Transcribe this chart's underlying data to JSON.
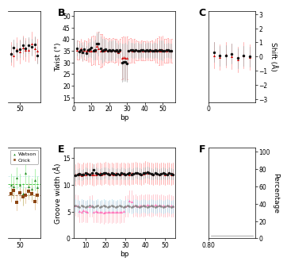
{
  "bg_color": "#ffffff",
  "panel_bg": "#ffffff",
  "label_fontsize": 6.5,
  "tick_fontsize": 5.5,
  "bold_fontsize": 9,
  "panel_B": {
    "label": "B",
    "ylabel": "Twist (°)",
    "xlabel": "bp",
    "xlim": [
      0,
      57
    ],
    "ylim": [
      13,
      52
    ],
    "yticks": [
      15,
      20,
      25,
      30,
      35,
      40,
      45,
      50
    ],
    "xticks": [
      0,
      10,
      20,
      30,
      40,
      50
    ],
    "mc_color": "#111111",
    "md_color": "#cc0000",
    "md_light": "#ff9999",
    "mc_light": "#aaaaaa",
    "x": [
      2,
      3,
      4,
      5,
      6,
      7,
      8,
      9,
      10,
      11,
      12,
      13,
      14,
      15,
      16,
      17,
      18,
      19,
      20,
      21,
      22,
      23,
      24,
      25,
      26,
      27,
      28,
      29,
      30,
      31,
      32,
      33,
      34,
      35,
      36,
      37,
      38,
      39,
      40,
      41,
      42,
      43,
      44,
      45,
      46,
      47,
      48,
      49,
      50,
      51,
      52,
      53,
      54,
      55
    ],
    "mc_y": [
      36.1,
      34.8,
      35.5,
      34.2,
      35.8,
      34.1,
      35.3,
      35.7,
      36.2,
      35.1,
      35.4,
      38.2,
      37.9,
      36.1,
      35.0,
      35.3,
      35.6,
      34.9,
      35.2,
      35.0,
      35.4,
      35.1,
      35.3,
      34.8,
      35.2,
      29.8,
      30.1,
      30.3,
      29.7,
      35.1,
      35.4,
      35.2,
      35.0,
      35.3,
      35.1,
      34.9,
      35.2,
      35.4,
      35.0,
      35.3,
      35.1,
      35.2,
      34.9,
      35.1,
      35.3,
      35.0,
      35.2,
      35.4,
      35.1,
      35.0,
      35.2,
      35.3,
      35.1,
      34.9
    ],
    "mc_err": [
      3.2,
      3.1,
      3.0,
      3.2,
      3.1,
      3.0,
      3.2,
      3.1,
      4.1,
      4.0,
      4.2,
      4.3,
      5.1,
      5.0,
      5.2,
      4.9,
      4.1,
      4.0,
      4.2,
      4.1,
      4.0,
      4.2,
      3.1,
      3.0,
      3.2,
      8.1,
      8.0,
      8.2,
      8.1,
      4.1,
      3.0,
      3.2,
      3.1,
      3.0,
      3.2,
      3.1,
      3.0,
      3.2,
      3.1,
      3.0,
      3.2,
      3.1,
      3.0,
      3.2,
      3.1,
      3.0,
      4.1,
      4.0,
      4.2,
      3.1,
      3.0,
      3.2,
      3.1,
      3.0
    ],
    "md_y": [
      35.2,
      35.1,
      36.0,
      34.8,
      35.3,
      35.0,
      35.4,
      35.1,
      35.0,
      35.3,
      35.1,
      37.2,
      36.1,
      35.0,
      35.2,
      35.1,
      35.3,
      35.0,
      35.2,
      35.1,
      35.3,
      35.0,
      35.1,
      34.2,
      35.0,
      31.8,
      32.1,
      32.0,
      31.9,
      35.0,
      35.2,
      35.1,
      35.0,
      35.2,
      35.1,
      35.0,
      35.2,
      35.1,
      35.0,
      35.2,
      35.1,
      35.0,
      35.2,
      35.1,
      35.0,
      35.2,
      35.1,
      35.0,
      35.2,
      35.1,
      35.0,
      35.2,
      35.1,
      35.0
    ],
    "md_err": [
      4.1,
      4.0,
      4.2,
      4.1,
      4.0,
      4.2,
      5.1,
      5.0,
      6.1,
      6.0,
      6.2,
      6.1,
      7.0,
      7.2,
      7.1,
      6.1,
      5.0,
      5.2,
      5.1,
      5.0,
      5.2,
      5.1,
      5.0,
      5.2,
      5.1,
      9.1,
      9.0,
      9.2,
      9.1,
      5.0,
      5.2,
      5.1,
      5.0,
      4.2,
      4.1,
      4.0,
      4.2,
      4.1,
      4.0,
      4.2,
      4.1,
      4.0,
      4.2,
      4.1,
      5.0,
      5.2,
      6.1,
      6.0,
      6.2,
      5.1,
      5.0,
      5.2,
      5.1,
      5.0
    ]
  },
  "panel_E": {
    "label": "E",
    "ylabel": "Groove width (Å)",
    "xlabel": "bp",
    "xlim": [
      4,
      55
    ],
    "ylim": [
      0,
      17
    ],
    "yticks": [
      0,
      5,
      10,
      15
    ],
    "xticks": [
      10,
      20,
      30,
      40,
      50
    ],
    "mc_major_color": "#111111",
    "md_major_color": "#cc0000",
    "md_major_light": "#ff9999",
    "mc_major_light": "#aaaaaa",
    "md_minor_color": "#ff69b4",
    "md_minor_light": "#ffb6c1",
    "mc_minor_light": "#aaddee",
    "mc_minor_color": "#888888",
    "x": [
      5,
      6,
      7,
      8,
      9,
      10,
      11,
      12,
      13,
      14,
      15,
      16,
      17,
      18,
      19,
      20,
      21,
      22,
      23,
      24,
      25,
      26,
      27,
      28,
      29,
      30,
      31,
      32,
      33,
      34,
      35,
      36,
      37,
      38,
      39,
      40,
      41,
      42,
      43,
      44,
      45,
      46,
      47,
      48,
      49,
      50,
      51,
      52,
      53,
      54
    ],
    "mc_major_y": [
      11.8,
      12.0,
      12.1,
      11.9,
      12.0,
      12.2,
      12.1,
      12.0,
      12.3,
      12.8,
      12.2,
      12.1,
      12.0,
      12.1,
      12.2,
      12.3,
      12.1,
      12.0,
      12.2,
      12.1,
      12.0,
      12.1,
      12.0,
      12.2,
      12.1,
      12.0,
      12.1,
      12.2,
      12.0,
      12.1,
      12.3,
      12.2,
      12.1,
      12.0,
      12.2,
      12.3,
      12.4,
      12.2,
      12.1,
      12.0,
      12.2,
      12.1,
      12.0,
      12.1,
      12.2,
      12.1,
      12.0,
      12.2,
      12.1,
      12.0
    ],
    "mc_major_err": [
      1.0,
      1.0,
      1.0,
      1.0,
      1.0,
      1.0,
      1.0,
      1.0,
      1.0,
      1.0,
      1.0,
      1.0,
      1.0,
      1.0,
      1.0,
      1.0,
      1.0,
      1.0,
      1.0,
      1.0,
      1.0,
      1.0,
      1.0,
      1.0,
      1.0,
      1.0,
      1.0,
      1.0,
      1.0,
      1.0,
      1.0,
      1.0,
      1.0,
      1.0,
      1.0,
      1.0,
      1.0,
      1.0,
      1.0,
      1.0,
      1.0,
      1.0,
      1.0,
      1.0,
      1.0,
      1.0,
      1.0,
      1.0,
      1.0,
      1.0
    ],
    "md_major_y": [
      11.9,
      12.1,
      12.0,
      11.8,
      12.1,
      12.0,
      12.2,
      12.1,
      12.0,
      11.9,
      12.0,
      12.1,
      12.2,
      12.0,
      12.1,
      12.3,
      12.2,
      12.0,
      12.1,
      12.0,
      12.2,
      12.1,
      12.0,
      12.1,
      12.2,
      12.0,
      12.1,
      12.0,
      12.2,
      12.1,
      12.3,
      12.2,
      12.1,
      12.0,
      12.1,
      12.4,
      12.3,
      12.2,
      12.1,
      12.0,
      12.2,
      12.1,
      12.0,
      12.1,
      12.2,
      12.0,
      12.1,
      12.2,
      12.0,
      12.1
    ],
    "md_major_err": [
      2.0,
      2.0,
      2.0,
      2.0,
      2.0,
      2.0,
      2.0,
      2.0,
      2.0,
      2.0,
      2.0,
      2.0,
      2.0,
      2.0,
      2.0,
      2.0,
      2.0,
      2.0,
      2.0,
      2.0,
      2.0,
      2.0,
      2.0,
      2.0,
      2.0,
      2.0,
      2.0,
      2.0,
      2.0,
      2.0,
      2.0,
      2.0,
      2.0,
      2.0,
      2.0,
      2.0,
      2.0,
      2.0,
      2.0,
      2.0,
      2.0,
      2.0,
      2.0,
      2.0,
      2.0,
      2.0,
      2.0,
      2.0,
      2.0,
      2.0
    ],
    "mc_minor_y": [
      6.1,
      6.0,
      5.9,
      6.1,
      6.0,
      5.8,
      6.0,
      6.1,
      6.0,
      5.9,
      6.0,
      6.1,
      5.9,
      6.0,
      6.1,
      6.0,
      5.9,
      6.0,
      6.1,
      6.0,
      5.9,
      6.0,
      6.1,
      6.0,
      5.9,
      6.0,
      6.1,
      6.0,
      5.9,
      6.0,
      6.1,
      6.0,
      5.9,
      6.0,
      6.1,
      6.0,
      5.9,
      6.0,
      6.1,
      6.0,
      5.9,
      6.0,
      6.1,
      6.0,
      5.9,
      6.0,
      6.1,
      6.0,
      5.9,
      6.0
    ],
    "mc_minor_err": [
      1.2,
      1.2,
      1.2,
      1.2,
      1.2,
      1.2,
      1.2,
      1.2,
      1.2,
      1.2,
      1.2,
      1.2,
      1.2,
      1.2,
      1.2,
      1.2,
      1.2,
      1.2,
      1.2,
      1.2,
      1.2,
      1.2,
      1.2,
      1.2,
      1.2,
      1.2,
      1.2,
      1.2,
      1.2,
      1.2,
      1.2,
      1.2,
      1.2,
      1.2,
      1.2,
      1.2,
      1.2,
      1.2,
      1.2,
      1.2,
      1.2,
      1.2,
      1.2,
      1.2,
      1.2,
      1.2,
      1.2,
      1.2,
      1.2,
      1.2
    ],
    "md_minor_y": [
      6.2,
      6.1,
      5.1,
      5.0,
      5.2,
      5.1,
      5.0,
      6.0,
      6.1,
      5.0,
      5.1,
      5.0,
      4.9,
      5.0,
      4.8,
      5.0,
      4.9,
      5.0,
      4.9,
      5.0,
      4.9,
      5.0,
      4.9,
      5.0,
      5.1,
      6.0,
      6.1,
      7.0,
      6.9,
      6.1,
      6.2,
      6.0,
      6.1,
      6.2,
      6.1,
      6.2,
      6.3,
      6.2,
      6.1,
      6.2,
      6.3,
      6.2,
      6.1,
      6.2,
      6.1,
      6.0,
      6.1,
      6.2,
      6.1,
      6.0
    ],
    "md_minor_err": [
      2.0,
      2.0,
      2.0,
      2.0,
      2.0,
      2.0,
      2.0,
      2.0,
      2.0,
      2.0,
      2.0,
      2.0,
      2.0,
      2.0,
      2.0,
      2.0,
      2.0,
      2.0,
      2.0,
      2.0,
      2.0,
      2.0,
      2.0,
      2.0,
      2.0,
      2.0,
      2.0,
      2.0,
      2.0,
      2.0,
      2.0,
      2.0,
      2.0,
      2.0,
      2.0,
      2.0,
      2.0,
      2.0,
      2.0,
      2.0,
      2.0,
      2.0,
      2.0,
      2.0,
      2.0,
      2.0,
      2.0,
      2.0,
      2.0,
      2.0
    ]
  },
  "panel_left_top": {
    "xlim": [
      46,
      57
    ],
    "ylim": [
      13,
      52
    ],
    "xtick": 50,
    "mc_color": "#111111",
    "md_color": "#cc0000",
    "md_light": "#ff9999",
    "mc_light": "#aaaaaa"
  },
  "panel_left_bot": {
    "xlim": [
      46,
      57
    ],
    "ylim": [
      0,
      17
    ],
    "xtick": 50,
    "watson_color": "#228B22",
    "crick_color": "#8B4513",
    "watson_light": "#90EE90",
    "crick_light": "#DEB887",
    "watson_line": "#00aa00",
    "crick_line": "#996633"
  },
  "panel_C": {
    "label": "C",
    "ylabel": "Shift (Å)",
    "xlabel": "",
    "xlim": [
      0,
      8
    ],
    "ylim": [
      -3.2,
      3.2
    ],
    "yticks": [
      -3,
      -2,
      -1,
      0,
      1,
      2,
      3
    ],
    "xtick": 0
  },
  "panel_F": {
    "label": "F",
    "ylabel": "Percentage",
    "xlabel": "",
    "xlim": [
      0,
      8
    ],
    "ylim": [
      0,
      105
    ],
    "yticks": [
      0,
      20,
      40,
      60,
      80,
      100
    ],
    "xtick_label": "0.80"
  },
  "legend_watson": "Watson",
  "legend_crick": "Crick"
}
